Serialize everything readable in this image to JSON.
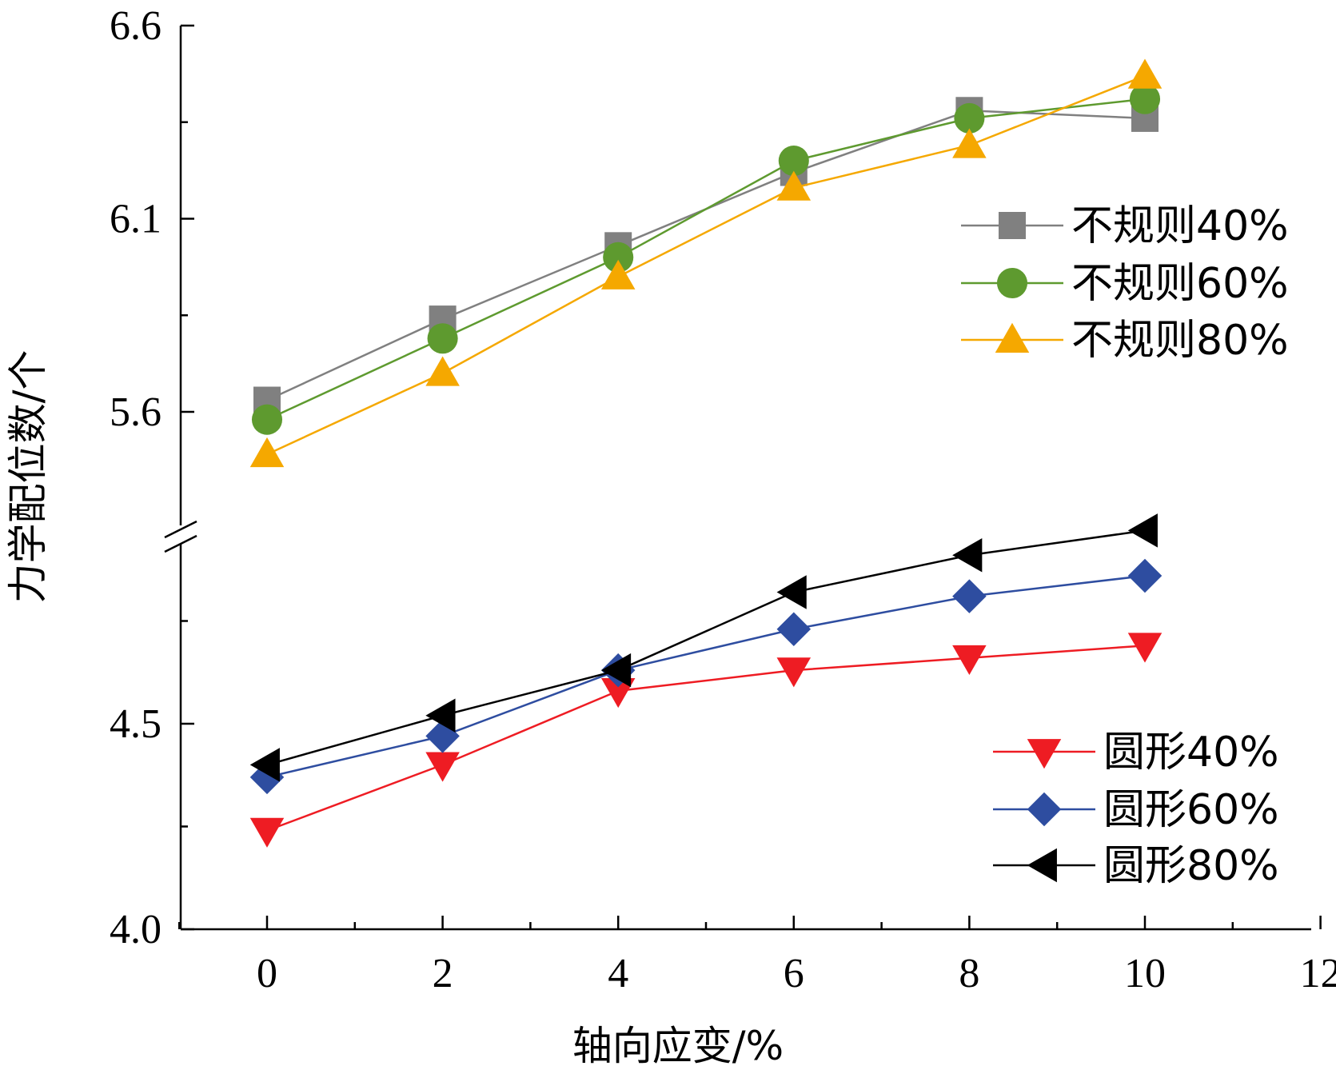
{
  "chart_data": {
    "type": "line",
    "xlabel": "轴向应变/%",
    "ylabel": "力学配位数/个",
    "x": [
      0,
      2,
      4,
      6,
      8,
      10
    ],
    "xlim": [
      -1,
      12
    ],
    "xticks": [
      0,
      2,
      4,
      6,
      8,
      10,
      12
    ],
    "ylim": [
      4.0,
      6.6
    ],
    "axis_break": [
      4.8,
      5.3
    ],
    "yticks_labeled": [
      "4.0",
      "4.5",
      "5.6",
      "6.1",
      "6.6"
    ],
    "series": [
      {
        "name": "不规则40%",
        "marker": "square",
        "color": "#808080",
        "values": [
          5.63,
          5.84,
          6.03,
          6.22,
          6.38,
          6.36
        ]
      },
      {
        "name": "不规则60%",
        "marker": "circle",
        "color": "#5e9a2f",
        "values": [
          5.58,
          5.79,
          6.0,
          6.25,
          6.36,
          6.41
        ]
      },
      {
        "name": "不规则80%",
        "marker": "triangle-up",
        "color": "#f5a800",
        "values": [
          5.49,
          5.7,
          5.95,
          6.18,
          6.29,
          6.47
        ]
      },
      {
        "name": "圆形40%",
        "marker": "triangle-down",
        "color": "#ee1c23",
        "values": [
          4.24,
          4.4,
          4.58,
          4.63,
          4.66,
          4.69
        ]
      },
      {
        "name": "圆形60%",
        "marker": "diamond",
        "color": "#2e4da0",
        "values": [
          4.37,
          4.47,
          4.63,
          4.73,
          4.81,
          4.86
        ]
      },
      {
        "name": "圆形80%",
        "marker": "triangle-left",
        "color": "#000000",
        "values": [
          4.4,
          4.52,
          4.63,
          4.82,
          4.91,
          4.97
        ]
      }
    ],
    "legends": [
      {
        "placement": "right-middle",
        "series": [
          "不规则40%",
          "不规则60%",
          "不规则80%"
        ]
      },
      {
        "placement": "bottom-right",
        "series": [
          "圆形40%",
          "圆形60%",
          "圆形80%"
        ]
      }
    ]
  }
}
